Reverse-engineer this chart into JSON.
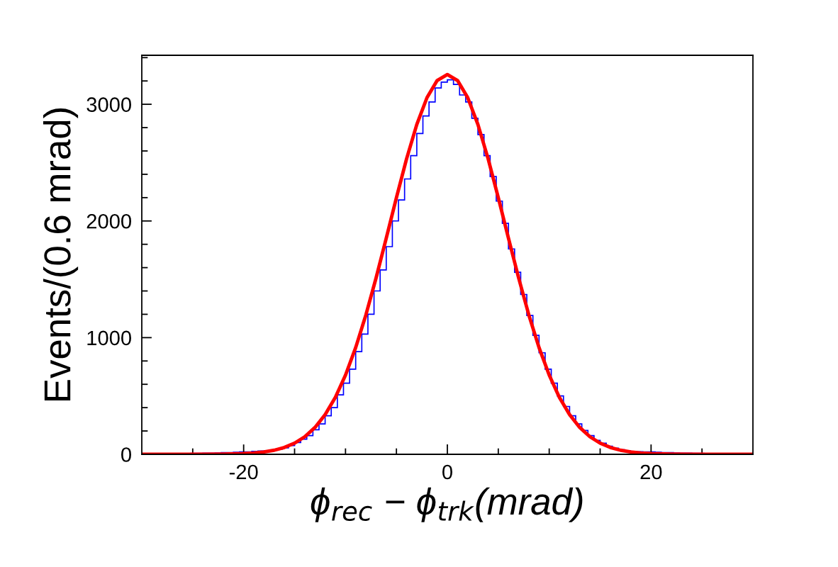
{
  "chart_data": {
    "type": "histogram",
    "xlabel": "ϕ$_{rec}$ − ϕ$_{trk}$(mrad)",
    "ylabel": "Events/(0.6 mrad)",
    "xlim": [
      -30,
      30
    ],
    "ylim": [
      0,
      3420
    ],
    "xticks": [
      {
        "value": -25,
        "label": null
      },
      -20,
      {
        "value": -15,
        "label": null
      },
      {
        "value": -10,
        "label": null
      },
      {
        "value": -5,
        "label": null
      },
      0,
      {
        "value": 5,
        "label": null
      },
      {
        "value": 10,
        "label": null
      },
      {
        "value": 15,
        "label": null
      },
      20,
      {
        "value": 25,
        "label": null
      }
    ],
    "yticks": [
      0,
      {
        "value": 200,
        "label": null
      },
      {
        "value": 400,
        "label": null
      },
      {
        "value": 600,
        "label": null
      },
      {
        "value": 800,
        "label": null
      },
      1000,
      {
        "value": 1200,
        "label": null
      },
      {
        "value": 1400,
        "label": null
      },
      {
        "value": 1600,
        "label": null
      },
      {
        "value": 1800,
        "label": null
      },
      2000,
      {
        "value": 2200,
        "label": null
      },
      {
        "value": 2400,
        "label": null
      },
      {
        "value": 2600,
        "label": null
      },
      {
        "value": 2800,
        "label": null
      },
      3000,
      {
        "value": 3200,
        "label": null
      },
      {
        "value": 3400,
        "label": null
      }
    ],
    "grid": false,
    "legend": false,
    "series": [
      {
        "type": "histogram",
        "color": "#0000ff",
        "bins": [
          -30,
          -29.4,
          -28.8,
          -28.2,
          -27.6,
          -27,
          -26.4,
          -25.8,
          -25.2,
          -24.6,
          -24,
          -23.4,
          -22.8,
          -22.2,
          -21.6,
          -21,
          -20.4,
          -19.8,
          -19.2,
          -18.6,
          -18,
          -17.4,
          -16.8,
          -16.2,
          -15.6,
          -15,
          -14.4,
          -13.8,
          -13.2,
          -12.6,
          -12,
          -11.4,
          -10.8,
          -10.2,
          -9.6,
          -9,
          -8.4,
          -7.8,
          -7.2,
          -6.6,
          -6,
          -5.4,
          -4.8,
          -4.2,
          -3.6,
          -3,
          -2.4,
          -1.8,
          -1.2,
          -0.6,
          0,
          0.6,
          1.2,
          1.8,
          2.4,
          3,
          3.6,
          4.2,
          4.8,
          5.4,
          6,
          6.6,
          7.2,
          7.8,
          8.4,
          9,
          9.6,
          10.2,
          10.8,
          11.4,
          12,
          12.6,
          13.2,
          13.8,
          14.4,
          15,
          15.6,
          16.2,
          16.8,
          17.4,
          18,
          18.6,
          19.2,
          19.8,
          20.4,
          21,
          21.6,
          22.2,
          22.8,
          23.4,
          24,
          24.6,
          25.2,
          25.8,
          26.4,
          27,
          27.6,
          28.2,
          28.8,
          29.4,
          30
        ],
        "values": [
          2,
          3,
          3,
          4,
          4,
          5,
          6,
          6,
          8,
          8,
          10,
          10,
          12,
          14,
          15,
          18,
          20,
          20,
          25,
          28,
          30,
          35,
          45,
          55,
          75,
          100,
          130,
          160,
          210,
          260,
          330,
          400,
          510,
          610,
          730,
          880,
          1030,
          1200,
          1400,
          1580,
          1780,
          2000,
          2180,
          2360,
          2560,
          2750,
          2900,
          3020,
          3140,
          3190,
          3210,
          3170,
          3080,
          3020,
          2880,
          2740,
          2560,
          2380,
          2170,
          1980,
          1760,
          1560,
          1370,
          1190,
          1020,
          870,
          730,
          610,
          500,
          410,
          330,
          260,
          205,
          160,
          120,
          95,
          70,
          52,
          39,
          30,
          25,
          22,
          20,
          20,
          18,
          15,
          14,
          12,
          10,
          10,
          8,
          8,
          6,
          6,
          5,
          4,
          4,
          3,
          3,
          2
        ]
      },
      {
        "type": "line",
        "color": "#ff0000",
        "x": [
          -30,
          -25,
          -22,
          -20,
          -19,
          -18,
          -17,
          -16,
          -15,
          -14,
          -13,
          -12,
          -11,
          -10,
          -9,
          -8,
          -7,
          -6,
          -5,
          -4,
          -3,
          -2,
          -1,
          0,
          1,
          2,
          3,
          4,
          5,
          6,
          7,
          8,
          9,
          10,
          11,
          12,
          13,
          14,
          15,
          16,
          17,
          18,
          19,
          20,
          22,
          25,
          30
        ],
        "values": [
          0,
          0,
          2,
          6,
          11,
          20,
          35,
          59,
          96,
          150,
          230,
          340,
          488,
          679,
          915,
          1194,
          1511,
          1852,
          2200,
          2534,
          2827,
          3057,
          3204,
          3255,
          3204,
          3057,
          2827,
          2534,
          2200,
          1852,
          1511,
          1194,
          915,
          679,
          488,
          340,
          230,
          150,
          96,
          59,
          35,
          20,
          11,
          6,
          2,
          0,
          0
        ]
      }
    ]
  }
}
